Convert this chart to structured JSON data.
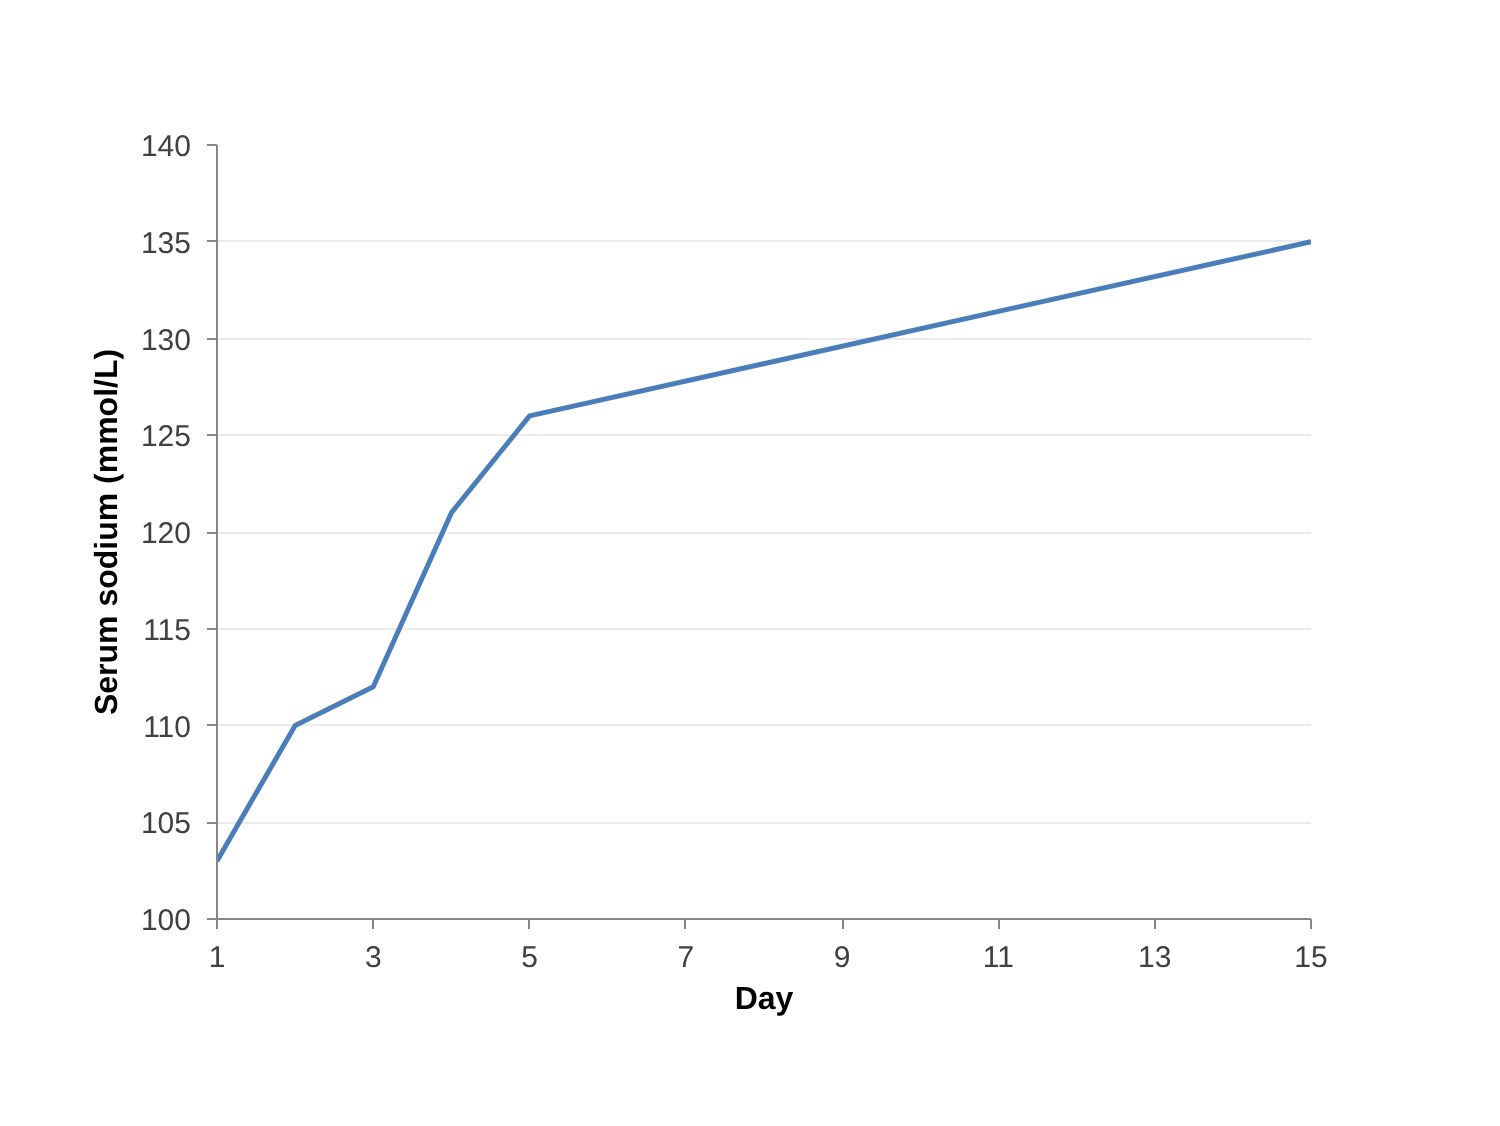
{
  "chart_data": {
    "type": "line",
    "xlabel": "Day",
    "ylabel": "Serum sodium (mmol/L)",
    "x": [
      1,
      2,
      3,
      4,
      5,
      15
    ],
    "values": [
      103,
      110,
      112,
      121,
      126,
      135
    ],
    "color": "#4a7ebb",
    "xlim": [
      1,
      15
    ],
    "xticks": [
      1,
      3,
      5,
      7,
      9,
      11,
      13,
      15
    ],
    "ylim": [
      100,
      140
    ],
    "yticks": [
      100,
      105,
      110,
      115,
      120,
      125,
      130,
      135,
      140
    ],
    "grid": "y"
  }
}
